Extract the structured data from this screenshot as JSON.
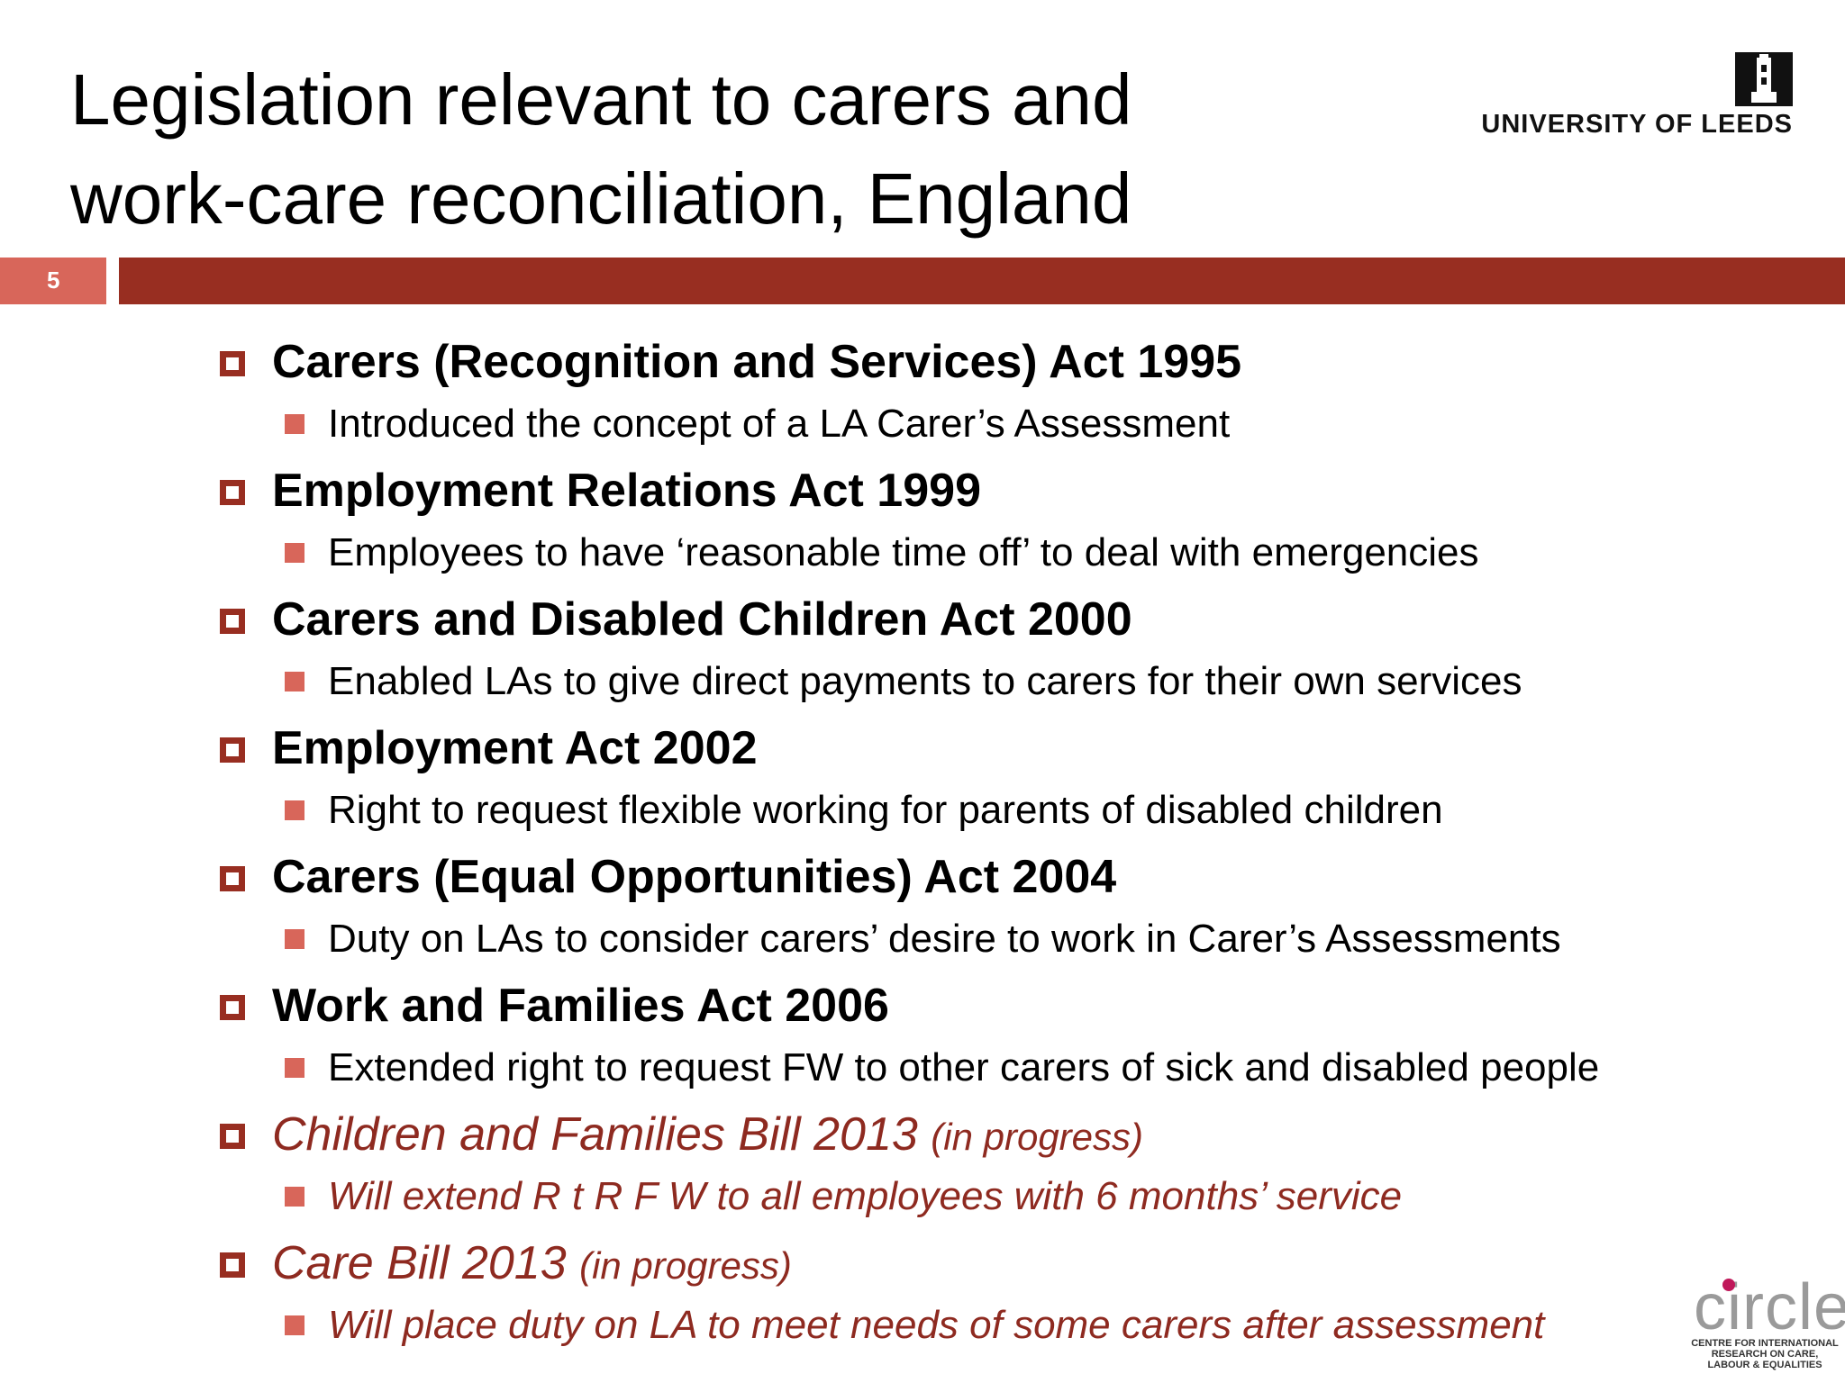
{
  "slide": {
    "title_line1": "Legislation relevant to carers and",
    "title_line2": "work-care reconciliation, England",
    "slide_number": "5"
  },
  "logos": {
    "university": "UNIVERSITY OF LEEDS",
    "circle_word": "circle",
    "circle_tag_1": "CENTRE FOR INTERNATIONAL",
    "circle_tag_2": "RESEARCH ON CARE,",
    "circle_tag_3": "LABOUR & EQUALITIES"
  },
  "colors": {
    "accent_dark": "#982e21",
    "accent_light": "#d8665a",
    "italic_text": "#8e2a20"
  },
  "items": [
    {
      "title": "Carers (Recognition and Services) Act 1995",
      "detail": "Introduced the concept of a LA Carer’s Assessment"
    },
    {
      "title": "Employment Relations Act 1999",
      "detail": "Employees to have ‘reasonable time off’ to deal with emergencies"
    },
    {
      "title": "Carers and Disabled Children Act 2000",
      "detail": "Enabled LAs to give direct payments to carers for their own services"
    },
    {
      "title": "Employment Act 2002",
      "detail": "Right to request flexible working for parents of disabled children"
    },
    {
      "title": "Carers (Equal Opportunities) Act 2004",
      "detail": "Duty on LAs to consider carers’ desire to work in Carer’s Assessments"
    },
    {
      "title": "Work and Families Act 2006",
      "detail": "Extended right to request FW to other carers of sick and disabled people"
    },
    {
      "title": "Children and Families Bill 2013",
      "status": "(in progress)",
      "detail": "Will extend  R t R F W to all employees with 6 months’ service"
    },
    {
      "title": "Care Bill 2013",
      "status": "(in progress)",
      "detail": "Will place duty on LA to meet needs of some carers after assessment"
    }
  ]
}
